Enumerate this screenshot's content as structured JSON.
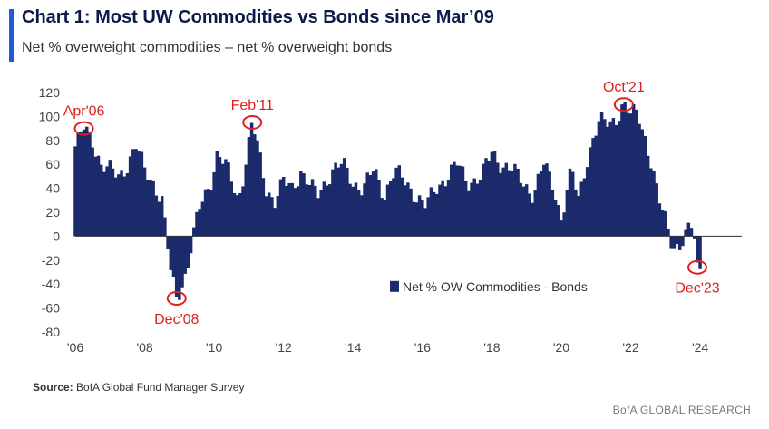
{
  "header": {
    "title": "Chart 1: Most UW Commodities vs Bonds since Mar’09",
    "subtitle": "Net % overweight commodities – net % overweight bonds"
  },
  "footer": {
    "source_label": "Source:",
    "source_text": "BofA Global Fund Manager Survey",
    "brand": "BofA GLOBAL RESEARCH"
  },
  "colors": {
    "bar": "#1b2a6b",
    "annotation": "#e02020",
    "accent": "#1f5bd6"
  },
  "chart_data": {
    "type": "bar",
    "ylim": [
      -80,
      120
    ],
    "yticks": [
      "120",
      "100",
      "80",
      "60",
      "40",
      "20",
      "0",
      "-20",
      "-40",
      "-60",
      "-80"
    ],
    "xlim": [
      2006,
      2025.2
    ],
    "xticks": [
      "'06",
      "'08",
      "'10",
      "'12",
      "'14",
      "'16",
      "'18",
      "'20",
      "'22",
      "'24"
    ],
    "legend": "Net % OW Commodities - Bonds",
    "series": [
      {
        "name": "Net % OW Commodities - Bonds",
        "anchors": [
          [
            2006.0,
            75
          ],
          [
            2006.25,
            90
          ],
          [
            2006.5,
            80
          ],
          [
            2006.75,
            60
          ],
          [
            2007.0,
            55
          ],
          [
            2007.25,
            50
          ],
          [
            2007.5,
            60
          ],
          [
            2007.75,
            75
          ],
          [
            2008.0,
            55
          ],
          [
            2008.25,
            45
          ],
          [
            2008.5,
            30
          ],
          [
            2008.75,
            -30
          ],
          [
            2008.92,
            -52
          ],
          [
            2009.2,
            -30
          ],
          [
            2009.4,
            0
          ],
          [
            2009.6,
            25
          ],
          [
            2009.9,
            45
          ],
          [
            2010.1,
            70
          ],
          [
            2010.4,
            55
          ],
          [
            2010.7,
            30
          ],
          [
            2010.9,
            60
          ],
          [
            2011.1,
            95
          ],
          [
            2011.25,
            75
          ],
          [
            2011.5,
            40
          ],
          [
            2011.75,
            30
          ],
          [
            2012.0,
            45
          ],
          [
            2012.25,
            40
          ],
          [
            2012.5,
            55
          ],
          [
            2012.8,
            40
          ],
          [
            2013.0,
            35
          ],
          [
            2013.4,
            55
          ],
          [
            2013.7,
            60
          ],
          [
            2014.0,
            45
          ],
          [
            2014.3,
            40
          ],
          [
            2014.6,
            55
          ],
          [
            2014.9,
            35
          ],
          [
            2015.2,
            55
          ],
          [
            2015.5,
            45
          ],
          [
            2015.8,
            35
          ],
          [
            2016.1,
            25
          ],
          [
            2016.4,
            40
          ],
          [
            2016.7,
            50
          ],
          [
            2017.0,
            60
          ],
          [
            2017.3,
            45
          ],
          [
            2017.7,
            50
          ],
          [
            2018.0,
            70
          ],
          [
            2018.3,
            60
          ],
          [
            2018.6,
            55
          ],
          [
            2018.9,
            45
          ],
          [
            2019.2,
            35
          ],
          [
            2019.5,
            60
          ],
          [
            2019.8,
            40
          ],
          [
            2020.0,
            15
          ],
          [
            2020.3,
            55
          ],
          [
            2020.5,
            30
          ],
          [
            2020.7,
            60
          ],
          [
            2020.9,
            80
          ],
          [
            2021.1,
            95
          ],
          [
            2021.4,
            95
          ],
          [
            2021.6,
            100
          ],
          [
            2021.8,
            110
          ],
          [
            2022.0,
            100
          ],
          [
            2022.2,
            105
          ],
          [
            2022.4,
            85
          ],
          [
            2022.6,
            60
          ],
          [
            2022.8,
            30
          ],
          [
            2023.0,
            15
          ],
          [
            2023.2,
            -5
          ],
          [
            2023.4,
            -10
          ],
          [
            2023.6,
            0
          ],
          [
            2023.8,
            10
          ],
          [
            2023.92,
            -26
          ],
          [
            2024.0,
            -26
          ]
        ]
      }
    ],
    "annotations": [
      {
        "label": "Apr'06",
        "x": 2006.25,
        "y": 90,
        "side": "above"
      },
      {
        "label": "Dec'08",
        "x": 2008.92,
        "y": -52,
        "side": "below"
      },
      {
        "label": "Feb'11",
        "x": 2011.1,
        "y": 95,
        "side": "above"
      },
      {
        "label": "Oct'21",
        "x": 2021.8,
        "y": 110,
        "side": "above"
      },
      {
        "label": "Dec'23",
        "x": 2023.92,
        "y": -26,
        "side": "below"
      }
    ]
  }
}
